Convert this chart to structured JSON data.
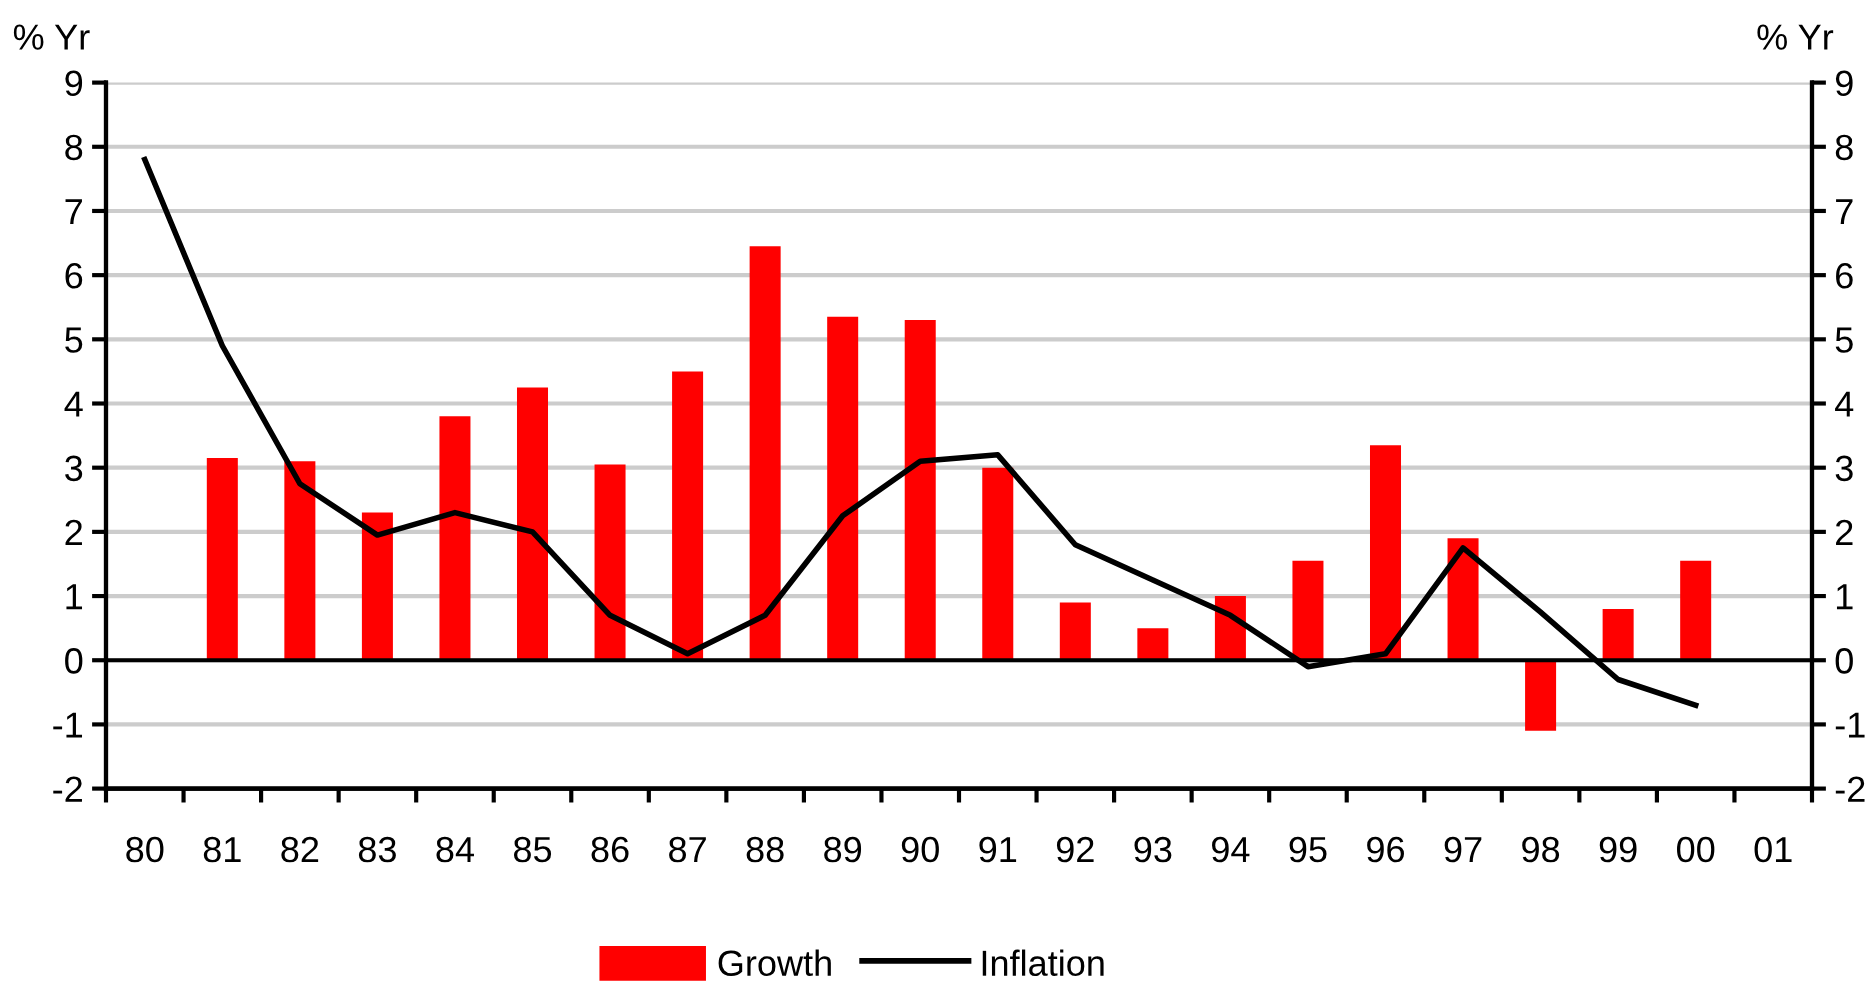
{
  "chart_data": {
    "type": "bar",
    "categories": [
      "80",
      "81",
      "82",
      "83",
      "84",
      "85",
      "86",
      "87",
      "88",
      "89",
      "90",
      "91",
      "92",
      "93",
      "94",
      "95",
      "96",
      "97",
      "98",
      "99",
      "00",
      "01"
    ],
    "series": [
      {
        "name": "Growth",
        "color": "#ff0000",
        "values": [
          null,
          3.15,
          3.1,
          2.3,
          3.8,
          4.25,
          3.05,
          4.5,
          6.45,
          5.35,
          5.3,
          3.0,
          0.9,
          0.5,
          1.0,
          1.55,
          3.35,
          1.9,
          -1.1,
          0.8,
          1.55,
          null
        ]
      },
      {
        "name": "Inflation",
        "type": "line",
        "color": "#000000",
        "values": [
          7.8,
          4.9,
          2.75,
          1.95,
          2.3,
          2.0,
          0.7,
          0.1,
          0.7,
          2.25,
          3.1,
          3.2,
          1.8,
          1.25,
          0.7,
          -0.1,
          0.1,
          1.75,
          0.75,
          -0.3,
          -0.7,
          null
        ]
      }
    ],
    "ylabel": "% Yr",
    "y2label": "% Yr",
    "ylim": [
      -2,
      9
    ],
    "yticks": [
      -2,
      -1,
      0,
      1,
      2,
      3,
      4,
      5,
      6,
      7,
      8,
      9
    ],
    "y2lim": [
      -2,
      9
    ],
    "y2ticks": [
      -2,
      -1,
      0,
      1,
      2,
      3,
      4,
      5,
      6,
      7,
      8,
      9
    ],
    "ref_lines": [
      {
        "axis": "y",
        "value": 0,
        "color": "#000000"
      }
    ],
    "grid": "y",
    "legend": "bottom",
    "line_style": "solid"
  }
}
